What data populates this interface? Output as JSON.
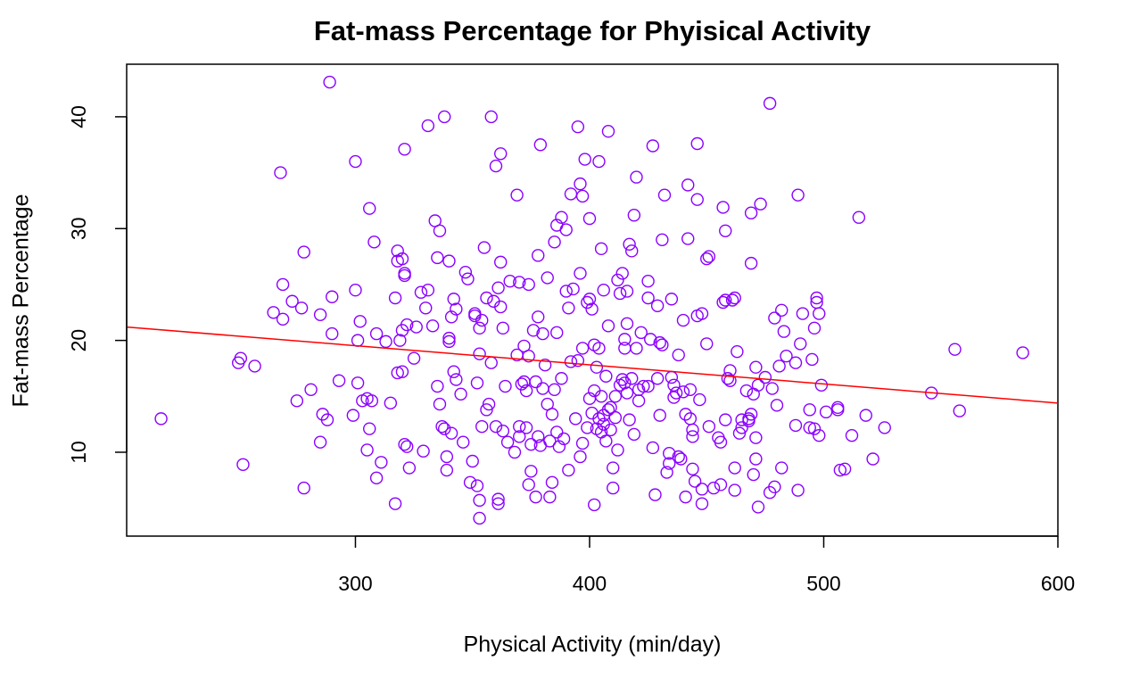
{
  "chart_data": {
    "type": "scatter",
    "title": "Fat-mass Percentage for Phyisical Activity",
    "x_label": "Physical Activity (min/day)",
    "y_label": "Fat-mass Percentage",
    "color": "#8b00ff",
    "xlim": [
      202.3,
      600
    ],
    "ylim": [
      2.5,
      44.7
    ],
    "xticks": [
      300,
      400,
      500,
      600
    ],
    "yticks": [
      10,
      20,
      30,
      40
    ],
    "trend_line": {
      "color": "#ff0000",
      "x": [
        202.3,
        600
      ],
      "y": [
        21.2,
        14.4
      ]
    },
    "x": [
      217,
      250,
      251,
      252,
      257,
      265,
      268,
      269,
      269,
      273,
      275,
      277,
      278,
      278,
      281,
      285,
      285,
      286,
      288,
      289,
      290,
      290,
      293,
      299,
      300,
      300,
      301,
      301,
      302,
      303,
      305,
      305,
      306,
      306,
      307,
      308,
      309,
      309,
      311,
      313,
      315,
      317,
      317,
      318,
      318,
      318,
      319,
      320,
      320,
      320,
      321,
      321,
      321,
      321,
      322,
      322,
      323,
      325,
      326,
      328,
      329,
      330,
      331,
      331,
      333,
      334,
      335,
      335,
      336,
      336,
      337,
      338,
      338,
      339,
      339,
      340,
      340,
      340,
      341,
      341,
      342,
      342,
      343,
      343,
      345,
      346,
      347,
      348,
      349,
      350,
      351,
      351,
      352,
      352,
      353,
      353,
      353,
      353,
      354,
      354,
      355,
      356,
      356,
      357,
      358,
      358,
      359,
      360,
      360,
      361,
      361,
      361,
      362,
      362,
      362,
      363,
      363,
      364,
      365,
      366,
      368,
      369,
      369,
      370,
      370,
      370,
      371,
      372,
      372,
      373,
      373,
      374,
      374,
      374,
      375,
      375,
      376,
      377,
      377,
      378,
      378,
      378,
      379,
      379,
      380,
      380,
      381,
      382,
      382,
      383,
      383,
      384,
      384,
      385,
      385,
      386,
      386,
      386,
      387,
      388,
      388,
      389,
      390,
      390,
      391,
      391,
      392,
      392,
      393,
      394,
      395,
      395,
      396,
      396,
      396,
      397,
      397,
      397,
      398,
      399,
      399,
      400,
      400,
      400,
      401,
      401,
      402,
      402,
      402,
      403,
      403,
      404,
      404,
      404,
      405,
      405,
      405,
      406,
      406,
      406,
      407,
      407,
      408,
      408,
      408,
      409,
      409,
      410,
      410,
      411,
      411,
      412,
      412,
      413,
      413,
      414,
      414,
      415,
      415,
      415,
      416,
      416,
      416,
      417,
      417,
      418,
      418,
      419,
      419,
      420,
      420,
      421,
      421,
      422,
      423,
      425,
      425,
      425,
      426,
      427,
      427,
      428,
      429,
      429,
      430,
      430,
      431,
      431,
      432,
      433,
      434,
      434,
      435,
      435,
      436,
      436,
      437,
      438,
      438,
      439,
      440,
      440,
      441,
      441,
      442,
      442,
      443,
      443,
      444,
      444,
      444,
      445,
      446,
      446,
      446,
      447,
      448,
      448,
      448,
      450,
      450,
      451,
      451,
      453,
      455,
      456,
      456,
      457,
      457,
      458,
      458,
      458,
      459,
      460,
      460,
      461,
      462,
      462,
      462,
      463,
      464,
      465,
      465,
      467,
      468,
      468,
      469,
      469,
      469,
      470,
      470,
      471,
      471,
      471,
      472,
      472,
      473,
      475,
      477,
      477,
      478,
      479,
      479,
      480,
      481,
      482,
      482,
      483,
      484,
      488,
      488,
      489,
      489,
      490,
      491,
      494,
      494,
      495,
      496,
      496,
      497,
      497,
      498,
      498,
      499,
      501,
      506,
      506,
      507,
      509,
      512,
      515,
      518,
      521,
      526,
      546,
      556,
      558,
      585
    ],
    "values": [
      13.0,
      18.0,
      18.4,
      8.9,
      17.7,
      22.5,
      35.0,
      25.0,
      21.9,
      23.5,
      14.6,
      22.9,
      6.8,
      27.9,
      15.6,
      10.9,
      22.3,
      13.4,
      12.9,
      43.1,
      20.6,
      23.9,
      16.4,
      13.3,
      24.5,
      36.0,
      20.0,
      16.2,
      21.7,
      14.6,
      14.8,
      10.2,
      31.8,
      12.1,
      14.6,
      28.8,
      20.6,
      7.7,
      9.1,
      19.9,
      14.4,
      23.8,
      5.4,
      27.1,
      17.1,
      28.0,
      20.0,
      17.2,
      20.9,
      27.3,
      25.8,
      26.0,
      10.7,
      37.1,
      10.5,
      21.4,
      8.6,
      18.4,
      21.2,
      24.3,
      10.1,
      22.9,
      39.2,
      24.5,
      21.3,
      30.7,
      27.4,
      15.9,
      29.8,
      14.3,
      12.3,
      40.0,
      12.1,
      9.6,
      8.4,
      20.2,
      19.9,
      27.1,
      11.7,
      22.1,
      17.2,
      23.7,
      16.5,
      22.8,
      15.2,
      10.9,
      26.1,
      25.5,
      7.3,
      9.2,
      22.4,
      22.2,
      16.2,
      7.0,
      18.8,
      21.1,
      5.7,
      4.1,
      12.3,
      21.8,
      28.3,
      23.8,
      13.8,
      14.3,
      40.0,
      18.0,
      23.5,
      12.3,
      35.6,
      24.7,
      5.8,
      5.4,
      27.0,
      23.0,
      36.7,
      11.9,
      21.1,
      15.9,
      10.9,
      25.3,
      10.0,
      18.7,
      33.0,
      11.4,
      12.3,
      25.2,
      16.1,
      19.5,
      16.3,
      12.2,
      15.5,
      18.6,
      25.0,
      7.1,
      10.7,
      8.3,
      20.9,
      16.3,
      6.0,
      22.1,
      27.6,
      11.4,
      10.6,
      37.5,
      20.6,
      15.7,
      17.8,
      14.3,
      25.6,
      11.0,
      6.0,
      13.4,
      7.3,
      15.6,
      28.8,
      30.3,
      11.8,
      20.7,
      10.5,
      16.6,
      31.0,
      11.2,
      29.9,
      24.4,
      8.4,
      22.9,
      33.1,
      18.1,
      24.6,
      13.0,
      18.2,
      39.1,
      34.0,
      9.6,
      26.0,
      10.8,
      19.3,
      32.9,
      36.2,
      23.4,
      12.2,
      30.9,
      23.7,
      14.8,
      13.5,
      22.8,
      5.3,
      15.5,
      19.6,
      12.1,
      17.6,
      13.0,
      36.0,
      19.3,
      11.8,
      28.2,
      15.0,
      12.5,
      13.3,
      24.5,
      11.0,
      16.8,
      13.8,
      38.7,
      21.3,
      14.0,
      12.0,
      8.6,
      6.8,
      15.0,
      13.1,
      10.2,
      25.4,
      16.0,
      24.2,
      26.0,
      16.5,
      20.1,
      19.3,
      16.2,
      24.4,
      21.5,
      15.3,
      28.6,
      12.9,
      28.0,
      16.6,
      31.2,
      11.6,
      34.6,
      19.3,
      14.6,
      15.6,
      20.7,
      15.9,
      25.3,
      23.8,
      15.9,
      20.1,
      37.4,
      10.4,
      6.2,
      23.1,
      16.6,
      19.8,
      13.3,
      29.0,
      19.6,
      33.0,
      8.2,
      9.0,
      9.9,
      23.7,
      16.7,
      14.9,
      16.0,
      15.3,
      18.7,
      9.6,
      9.4,
      21.8,
      15.4,
      13.4,
      6.0,
      29.1,
      33.9,
      15.6,
      13.0,
      12.0,
      11.4,
      8.5,
      7.4,
      37.6,
      32.6,
      22.2,
      14.7,
      22.4,
      6.7,
      5.4,
      27.3,
      19.7,
      27.5,
      12.3,
      6.8,
      11.3,
      7.1,
      10.9,
      31.9,
      23.4,
      23.6,
      29.8,
      12.9,
      16.6,
      16.4,
      17.3,
      23.6,
      23.8,
      8.6,
      6.6,
      19.0,
      11.7,
      12.2,
      12.9,
      15.5,
      13.0,
      12.8,
      31.4,
      26.9,
      13.4,
      15.2,
      8.0,
      9.4,
      11.3,
      17.6,
      16.0,
      5.1,
      32.2,
      16.7,
      6.4,
      41.2,
      15.7,
      6.9,
      22.0,
      14.2,
      17.7,
      22.7,
      8.6,
      20.8,
      18.6,
      12.4,
      18.0,
      6.6,
      33.0,
      19.7,
      22.4,
      13.8,
      12.2,
      18.3,
      21.1,
      12.1,
      23.8,
      23.4,
      22.4,
      11.5,
      16.0,
      13.6,
      14.0,
      13.8,
      8.4,
      8.5,
      11.5,
      31.0,
      13.3,
      9.4,
      12.2,
      15.3,
      19.2,
      13.7,
      18.9
    ]
  }
}
